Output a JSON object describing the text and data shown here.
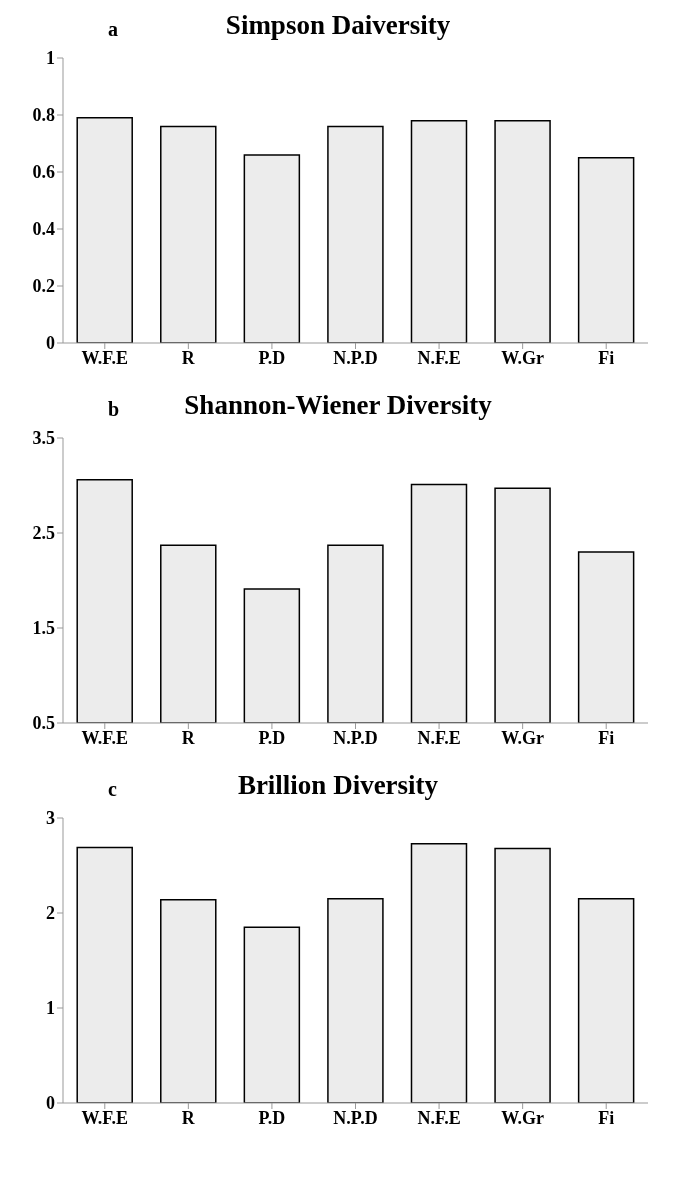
{
  "chart_data": [
    {
      "type": "bar",
      "title": "Simpson Daiversity",
      "annotations": [
        "a"
      ],
      "categories": [
        "W.F.E",
        "R",
        "P.D",
        "N.P.D",
        "N.F.E",
        "W.Gr",
        "Fi"
      ],
      "values": [
        0.79,
        0.76,
        0.66,
        0.76,
        0.78,
        0.78,
        0.65
      ],
      "color": "#ececec",
      "ylim": [
        0,
        1
      ],
      "yticks": [
        0,
        0.2,
        0.4,
        0.6,
        0.8,
        1
      ],
      "grid": false,
      "legend": false
    },
    {
      "type": "bar",
      "title": "Shannon-Wiener Diversity",
      "annotations": [
        "b"
      ],
      "categories": [
        "W.F.E",
        "R",
        "P.D",
        "N.P.D",
        "N.F.E",
        "W.Gr",
        "Fi"
      ],
      "values": [
        3.06,
        2.37,
        1.91,
        2.37,
        3.01,
        2.97,
        2.3
      ],
      "color": "#ececec",
      "ylim": [
        0.5,
        3.5
      ],
      "yticks": [
        0.5,
        1.5,
        2.5,
        3.5
      ],
      "grid": false,
      "legend": false
    },
    {
      "type": "bar",
      "title": "Brillion Diversity",
      "annotations": [
        "c"
      ],
      "categories": [
        "W.F.E",
        "R",
        "P.D",
        "N.P.D",
        "N.F.E",
        "W.Gr",
        "Fi"
      ],
      "values": [
        2.69,
        2.14,
        1.85,
        2.15,
        2.73,
        2.68,
        2.15
      ],
      "color": "#ececec",
      "ylim": [
        0,
        3
      ],
      "yticks": [
        0,
        1,
        2,
        3
      ],
      "grid": false,
      "legend": false
    }
  ]
}
